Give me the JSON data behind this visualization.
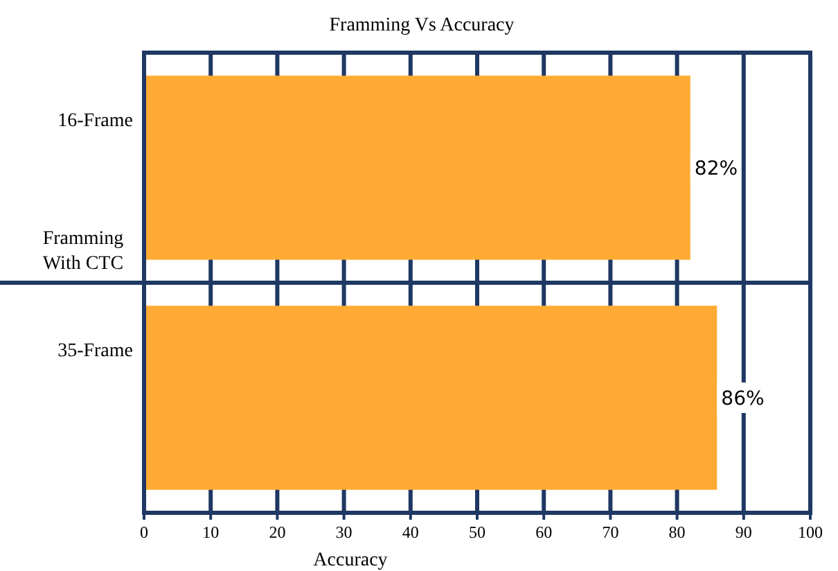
{
  "chart_data": {
    "type": "bar",
    "orientation": "horizontal",
    "title": "Framming Vs Accuracy",
    "xlabel": "Accuracy",
    "ylabel": "Framming With CTC",
    "categories": [
      "16-Frame",
      "35-Frame"
    ],
    "values": [
      82,
      86
    ],
    "value_labels": [
      "82%",
      "86%"
    ],
    "color": "#ffab33",
    "xlim": [
      0,
      100
    ],
    "xticks": [
      0,
      10,
      20,
      30,
      40,
      50,
      60,
      70,
      80,
      90,
      100
    ],
    "grid": "x"
  }
}
